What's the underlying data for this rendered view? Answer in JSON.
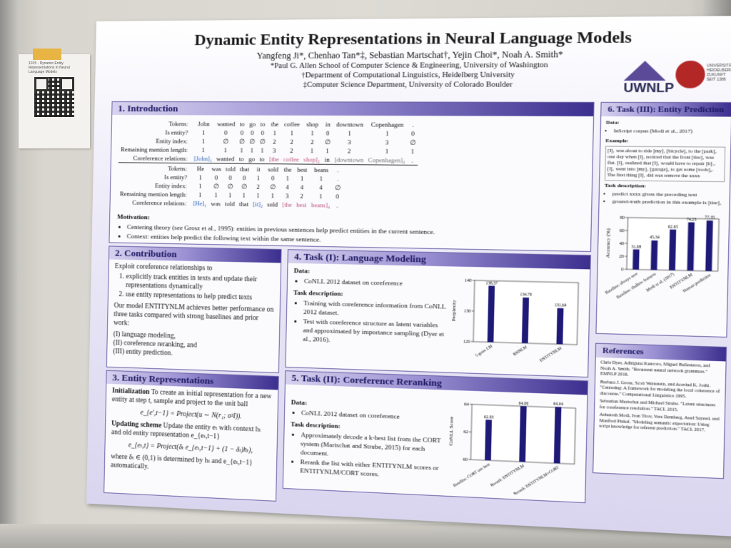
{
  "note": {
    "text": "1015 · Dynamic Entity Representations in Neural Language Models"
  },
  "poster": {
    "title": "Dynamic Entity Representations in Neural Language Models",
    "authors": "Yangfeng Ji*, Chenhao Tan*‡, Sebastian Martschat†, Yejin Choi*, Noah A. Smith*",
    "affiliations": [
      "*Paul G. Allen School of Computer Science & Engineering, University of Washington",
      "†Department of Computational Linguistics, Heidelberg University",
      "‡Computer Science Department, University of Colorado Boulder"
    ],
    "logo_text": "UWNLP",
    "logo_uni": "UNIVERSITÄT HEIDELBERG ZUKUNFT SEIT 1386"
  },
  "intro": {
    "heading": "1. Introduction",
    "table1": {
      "tokens": [
        "John",
        "wanted",
        "to",
        "go",
        "to",
        "the",
        "coffee",
        "shop",
        "in",
        "downtown",
        "Copenhagen",
        "."
      ],
      "is_entity": [
        "1",
        "0",
        "0",
        "0",
        "0",
        "1",
        "1",
        "1",
        "0",
        "1",
        "1",
        "0"
      ],
      "entity_index": [
        "1",
        "∅",
        "∅",
        "∅",
        "∅",
        "2",
        "2",
        "2",
        "∅",
        "3",
        "3",
        "∅"
      ],
      "mention_length": [
        "1",
        "1",
        "1",
        "1",
        "1",
        "3",
        "2",
        "1",
        "1",
        "2",
        "1",
        "1"
      ],
      "coref": [
        "[John]₁",
        "wanted",
        "to",
        "go",
        "to",
        "[the",
        "coffee",
        "shop]₂",
        "in",
        "[downtown",
        "Copenhagen]₃",
        "."
      ]
    },
    "table2": {
      "tokens": [
        "He",
        "was",
        "told",
        "that",
        "it",
        "sold",
        "the",
        "best",
        "beans",
        "."
      ],
      "is_entity": [
        "1",
        "0",
        "0",
        "0",
        "1",
        "0",
        "1",
        "1",
        "1",
        "."
      ],
      "entity_index": [
        "1",
        "∅",
        "∅",
        "∅",
        "2",
        "∅",
        "4",
        "4",
        "4",
        "∅"
      ],
      "mention_length": [
        "1",
        "1",
        "1",
        "1",
        "1",
        "1",
        "3",
        "2",
        "1",
        "0"
      ],
      "coref": [
        "[He]₁",
        "was",
        "told",
        "that",
        "[it]₂",
        "sold",
        "[the",
        "best",
        "beans]₄",
        "."
      ]
    },
    "row_labels": [
      "Tokens:",
      "Is entity?",
      "Entity index:",
      "Remaining mention length:",
      "Coreference relations:"
    ],
    "motivation_label": "Motivation:",
    "motivation": [
      "Centering theory (see Grosz et al., 1995): entities in previous sentences help predict entities in the current sentence.",
      "Context: entities help predict the following text within the same sentence."
    ]
  },
  "contribution": {
    "heading": "2. Contribution",
    "intro": "Exploit coreference relationships to",
    "points": [
      "explicitly track entities in texts and update their representations dynamically",
      "use entity representations to help predict texts"
    ],
    "model": "Our model ENTITYNLM achieves better performance on three tasks compared with strong baselines and prior work:",
    "tasks": [
      "(I) language modeling,",
      "(II) coreference reranking, and",
      "(III) entity prediction."
    ]
  },
  "entity": {
    "heading": "3. Entity Representations",
    "init_label": "Initialization",
    "init_text": "To create an initial representation for a new entity at step t, sample and project to the unit ball",
    "eq1": "e_{e',t−1} = Project(u ∼ N(r₁; σ²I)).",
    "update_label": "Updating scheme",
    "update_text": "Update the entity eₜ with context hₜ and old entity representation e_{eₜ,t−1}",
    "eq2": "e_{eₜ,t} = Project(δₜ e_{eₜ,t−1} + (1 − δₜ)hₜ),",
    "tail": "where δₜ ∈ (0,1) is determined by hₜ and e_{eₜ,t−1} automatically."
  },
  "task1": {
    "heading": "4. Task (I): Language Modeling",
    "data_label": "Data:",
    "data": "CoNLL 2012 dataset on coreference",
    "desc_label": "Task description:",
    "desc": [
      "Training with coreference information from CoNLL 2012 dataset.",
      "Test with coreference structure as latent variables and approximated by importance sampling (Dyer et al., 2016)."
    ]
  },
  "task2": {
    "heading": "5. Task (II): Coreference Reranking",
    "data_label": "Data:",
    "data": "CoNLL 2012 dataset on coreference",
    "desc_label": "Task description:",
    "desc": [
      "Approximately decode a k-best list from the CORT system (Martschat and Strube, 2015) for each document.",
      "Rerank the list with either ENTITYNLM scores or ENTITYNLM/CORT scores."
    ]
  },
  "task3": {
    "heading": "6. Task (III): Entity Prediction",
    "data_label": "Data:",
    "data": "InScript corpus (Modi et al., 2017)",
    "example_label": "Example:",
    "example": "[I]₁ was about to ride [my]₁ [bicycle]₂ to the [park]₃ one day when [I]₁ noticed that the front [tire]₄ was flat. [I]₁ realized that [I]₁ would have to repair [it]₄. [I]₁ went into [my]₁ [garage]₅ to get some [tools]₆. The first thing [I]₁ did was remove the xxxx",
    "desc_label": "Task description:",
    "desc": [
      "predict xxxx given the preceding text",
      "ground-truth prediction in this example is [tire]₄"
    ]
  },
  "references": {
    "heading": "References",
    "items": [
      "Chris Dyer, Adhiguna Kuncoro, Miguel Ballesteros, and Noah A. Smith. \"Recurrent neural network grammars.\" EMNLP 2016.",
      "Barbara J. Grosz, Scott Weinstein, and Aravind K. Joshi. \"Centering: A framework for modeling the local coherence of discourse.\" Computational Linguistics 1995.",
      "Sebastian Martschat and Michael Strube. \"Latent structures for coreference resolution.\" TACL 2015.",
      "Ashutosh Modi, Ivan Titov, Vera Demberg, Asad Sayeed, and Manfred Pinkal. \"Modeling semantic expectation: Using script knowledge for referent prediction.\" TACL 2017."
    ]
  },
  "chart_data": [
    {
      "type": "bar",
      "categories": [
        "5-gram LM",
        "RNNLM",
        "ENTITYNLM"
      ],
      "values": [
        138.37,
        134.79,
        131.64
      ],
      "ylabel": "Perplexity",
      "ylim": [
        120,
        140
      ],
      "yticks": [
        120,
        130,
        140
      ],
      "color": "#1f1a78"
    },
    {
      "type": "bar",
      "categories": [
        "Baseline: CORT one best",
        "Rerank: ENTITYNLM",
        "Rerank: ENTITYNLM+CORT"
      ],
      "values": [
        62.93,
        64.0,
        64.04
      ],
      "ylabel": "CoNLL Score",
      "ylim": [
        60,
        64
      ],
      "yticks": [
        60,
        62,
        64
      ],
      "color": "#1f1a78"
    },
    {
      "type": "bar",
      "categories": [
        "Baseline: always new",
        "Baseline: shallow features",
        "Modi et al. (2017)",
        "ENTITYNLM",
        "Human prediction"
      ],
      "values": [
        31.08,
        45.34,
        62.65,
        74.23,
        77.35
      ],
      "ylabel": "Accuracy (%)",
      "ylim": [
        0,
        80
      ],
      "yticks": [
        0,
        20,
        40,
        60,
        80
      ],
      "color": "#1f1a78"
    }
  ]
}
